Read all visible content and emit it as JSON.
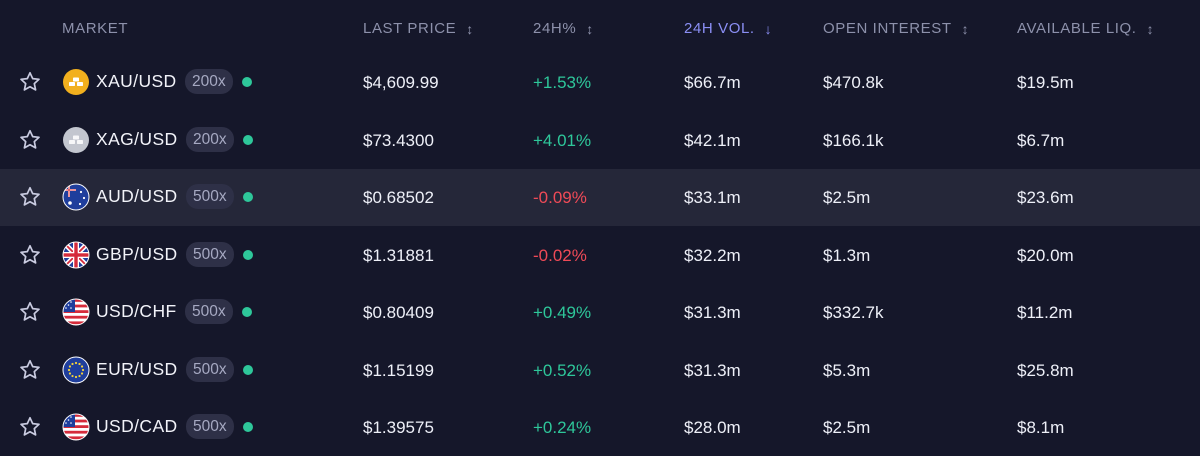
{
  "header": {
    "market": "MARKET",
    "last_price": "LAST PRICE",
    "change_24h": "24H%",
    "vol_24h": "24H VOL.",
    "open_interest": "OPEN INTEREST",
    "available_liq": "AVAILABLE LIQ.",
    "sort_both": "↕",
    "sort_down": "↓"
  },
  "sort": {
    "column": "24H VOL.",
    "direction": "descending"
  },
  "colors": {
    "positive": "#2ec79a",
    "negative": "#ef4a57",
    "accent": "#8b8ff5",
    "status_dot": "#2ec79a"
  },
  "rows": [
    {
      "symbol": "XAU/USD",
      "leverage": "200x",
      "icon": "gold-bars-icon",
      "price": "$4,609.99",
      "change": "+1.53%",
      "direction": "up",
      "volume": "$66.7m",
      "open_interest": "$470.8k",
      "liquidity": "$19.5m"
    },
    {
      "symbol": "XAG/USD",
      "leverage": "200x",
      "icon": "silver-bars-icon",
      "price": "$73.4300",
      "change": "+4.01%",
      "direction": "up",
      "volume": "$42.1m",
      "open_interest": "$166.1k",
      "liquidity": "$6.7m"
    },
    {
      "symbol": "AUD/USD",
      "leverage": "500x",
      "icon": "australia-flag-icon",
      "price": "$0.68502",
      "change": "-0.09%",
      "direction": "down",
      "volume": "$33.1m",
      "open_interest": "$2.5m",
      "liquidity": "$23.6m"
    },
    {
      "symbol": "GBP/USD",
      "leverage": "500x",
      "icon": "uk-flag-icon",
      "price": "$1.31881",
      "change": "-0.02%",
      "direction": "down",
      "volume": "$32.2m",
      "open_interest": "$1.3m",
      "liquidity": "$20.0m"
    },
    {
      "symbol": "USD/CHF",
      "leverage": "500x",
      "icon": "usa-flag-icon",
      "price": "$0.80409",
      "change": "+0.49%",
      "direction": "up",
      "volume": "$31.3m",
      "open_interest": "$332.7k",
      "liquidity": "$11.2m"
    },
    {
      "symbol": "EUR/USD",
      "leverage": "500x",
      "icon": "eu-flag-icon",
      "price": "$1.15199",
      "change": "+0.52%",
      "direction": "up",
      "volume": "$31.3m",
      "open_interest": "$5.3m",
      "liquidity": "$25.8m"
    },
    {
      "symbol": "USD/CAD",
      "leverage": "500x",
      "icon": "usa-flag-icon",
      "price": "$1.39575",
      "change": "+0.24%",
      "direction": "up",
      "volume": "$28.0m",
      "open_interest": "$2.5m",
      "liquidity": "$8.1m"
    }
  ]
}
